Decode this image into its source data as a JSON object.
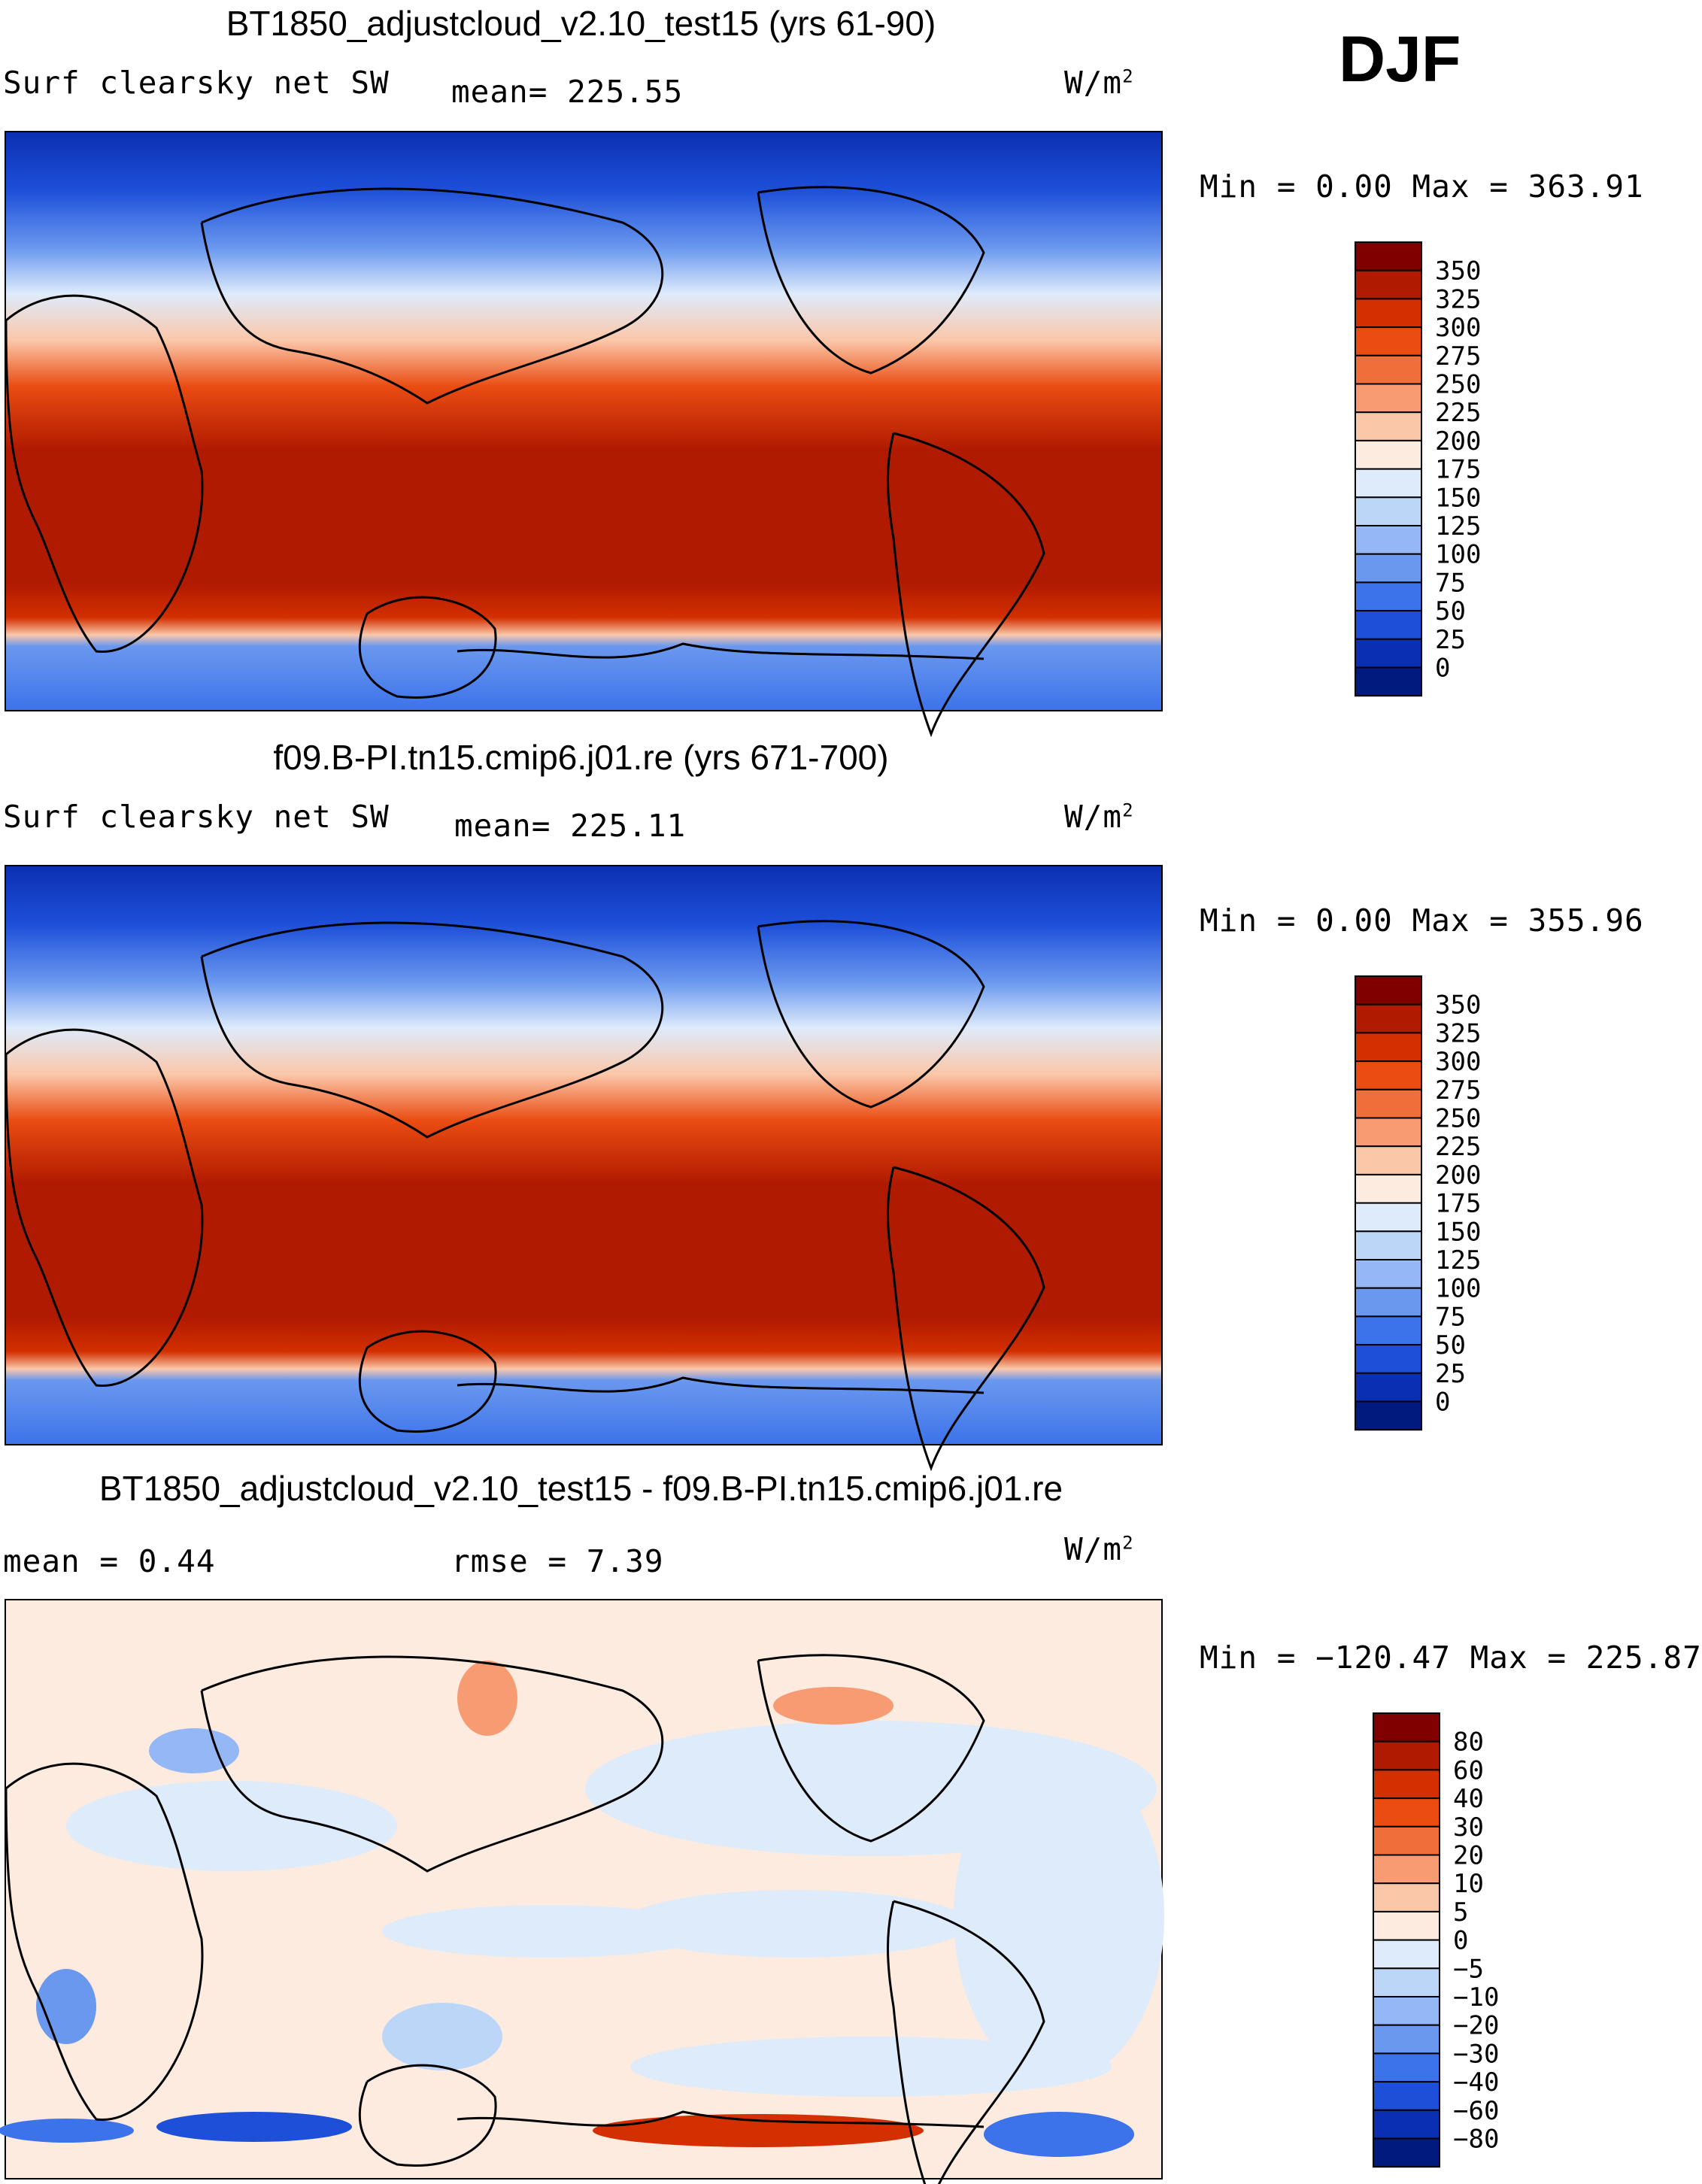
{
  "season": "DJF",
  "chart_data": [
    {
      "type": "heatmap",
      "title": "BT1850_adjustcloud_v2.10_test15 (yrs 61-90)",
      "field": "Surf clearsky net SW",
      "mean_label": "mean= 225.55",
      "units": "W/m",
      "units_exp": "2",
      "stats_label": "Min =    0.00 Max = 363.91",
      "min": 0.0,
      "max": 363.91,
      "mean": 225.55,
      "levels": [
        "350",
        "325",
        "300",
        "275",
        "250",
        "225",
        "200",
        "175",
        "150",
        "125",
        "100",
        "75",
        "50",
        "25",
        "0"
      ],
      "colors": [
        "#800000",
        "#b01a00",
        "#d32f00",
        "#ea4c12",
        "#f06e3a",
        "#f69b72",
        "#fbc7a9",
        "#fdebdf",
        "#deebfb",
        "#bcd6f8",
        "#93b8f5",
        "#6a98ef",
        "#3d73ea",
        "#1d4fd9",
        "#0b2fb2",
        "#001a7e"
      ]
    },
    {
      "type": "heatmap",
      "title": "f09.B-PI.tn15.cmip6.j01.re (yrs 671-700)",
      "field": "Surf clearsky net SW",
      "mean_label": "mean= 225.11",
      "units": "W/m",
      "units_exp": "2",
      "stats_label": "Min =    0.00 Max = 355.96",
      "min": 0.0,
      "max": 355.96,
      "mean": 225.11,
      "levels": [
        "350",
        "325",
        "300",
        "275",
        "250",
        "225",
        "200",
        "175",
        "150",
        "125",
        "100",
        "75",
        "50",
        "25",
        "0"
      ],
      "colors": [
        "#800000",
        "#b01a00",
        "#d32f00",
        "#ea4c12",
        "#f06e3a",
        "#f69b72",
        "#fbc7a9",
        "#fdebdf",
        "#deebfb",
        "#bcd6f8",
        "#93b8f5",
        "#6a98ef",
        "#3d73ea",
        "#1d4fd9",
        "#0b2fb2",
        "#001a7e"
      ]
    },
    {
      "type": "heatmap",
      "title": "BT1850_adjustcloud_v2.10_test15 - f09.B-PI.tn15.cmip6.j01.re",
      "field": "mean =    0.44",
      "mean_label": "rmse =    7.39",
      "units": "W/m",
      "units_exp": "2",
      "stats_label": "Min = −120.47 Max = 225.87",
      "min": -120.47,
      "max": 225.87,
      "mean": 0.44,
      "rmse": 7.39,
      "levels": [
        "80",
        "60",
        "40",
        "30",
        "20",
        "10",
        "5",
        "0",
        "−5",
        "−10",
        "−20",
        "−30",
        "−40",
        "−60",
        "−80"
      ],
      "colors": [
        "#800000",
        "#b01a00",
        "#d32f00",
        "#ea4c12",
        "#f06e3a",
        "#f69b72",
        "#fbc7a9",
        "#fdebdf",
        "#deebfb",
        "#bcd6f8",
        "#93b8f5",
        "#6a98ef",
        "#3d73ea",
        "#1d4fd9",
        "#0b2fb2",
        "#001a7e"
      ]
    }
  ]
}
